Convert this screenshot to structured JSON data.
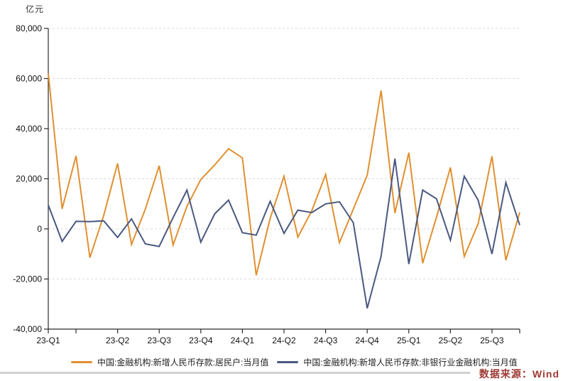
{
  "chart": {
    "unit": "亿元",
    "watermark": "数据来源：Wind"
  },
  "chart_data": {
    "type": "line",
    "title": "",
    "ylabel": "亿元",
    "xlabel": "",
    "ylim": [
      -40000,
      80000
    ],
    "y_ticks": [
      80000,
      60000,
      40000,
      20000,
      0,
      -20000,
      -40000
    ],
    "grid": "horizontal-dashed",
    "legend_position": "bottom",
    "x": [
      "2023-01",
      "2023-02",
      "2023-03",
      "2023-04",
      "2023-05",
      "2023-06",
      "2023-07",
      "2023-08",
      "2023-09",
      "2023-10",
      "2023-11",
      "2023-12",
      "2024-01",
      "2024-02",
      "2024-03",
      "2024-04",
      "2024-05",
      "2024-06",
      "2024-07",
      "2024-08",
      "2024-09",
      "2024-10",
      "2024-11",
      "2024-12",
      "2025-01",
      "2025-02",
      "2025-03",
      "2025-04",
      "2025-05",
      "2025-06",
      "2025-07",
      "2025-08",
      "2025-09",
      "2025-10",
      "2025-11"
    ],
    "x_tick_marks": [
      {
        "month_index": 0,
        "label": "23-Q1"
      },
      {
        "month_index": 2,
        "label": ""
      },
      {
        "month_index": 5,
        "label": "23-Q2"
      },
      {
        "month_index": 8,
        "label": "23-Q3"
      },
      {
        "month_index": 11,
        "label": "23-Q4"
      },
      {
        "month_index": 14,
        "label": "24-Q1"
      },
      {
        "month_index": 17,
        "label": "24-Q2"
      },
      {
        "month_index": 20,
        "label": "24-Q3"
      },
      {
        "month_index": 23,
        "label": "24-Q4"
      },
      {
        "month_index": 26,
        "label": "25-Q1"
      },
      {
        "month_index": 29,
        "label": "25-Q2"
      },
      {
        "month_index": 32,
        "label": "25-Q3"
      },
      {
        "month_index": 34,
        "label": ""
      }
    ],
    "series": [
      {
        "name": "中国:金融机构:新增人民币存款:居民户:当月值",
        "color": "#E0902F",
        "values": [
          62000,
          8000,
          29100,
          -11500,
          5400,
          26100,
          -6200,
          7900,
          25200,
          -6400,
          9000,
          19700,
          25500,
          32000,
          28300,
          -18500,
          4200,
          21000,
          -3300,
          7200,
          21700,
          -5500,
          7900,
          21400,
          55200,
          6300,
          30400,
          -13700,
          4700,
          24500,
          -11000,
          2000,
          29000,
          -12500,
          6600
        ]
      },
      {
        "name": "中国:金融机构:新增人民币存款:非银行业金融机构:当月值",
        "color": "#4A5980",
        "values": [
          9500,
          -5000,
          3000,
          2900,
          3200,
          -3400,
          4000,
          -6000,
          -7000,
          4500,
          15500,
          -5300,
          6000,
          11500,
          -1500,
          -2500,
          11000,
          -1800,
          7500,
          6500,
          10000,
          10800,
          2500,
          -31700,
          -11000,
          28000,
          -14000,
          15500,
          12000,
          -4500,
          21000,
          11500,
          -10000,
          18500,
          1500
        ]
      }
    ]
  },
  "axis_style": {
    "axis_color": "#2b2b2b",
    "grid_color": "#d9d9d9",
    "label_color": "#111111"
  }
}
